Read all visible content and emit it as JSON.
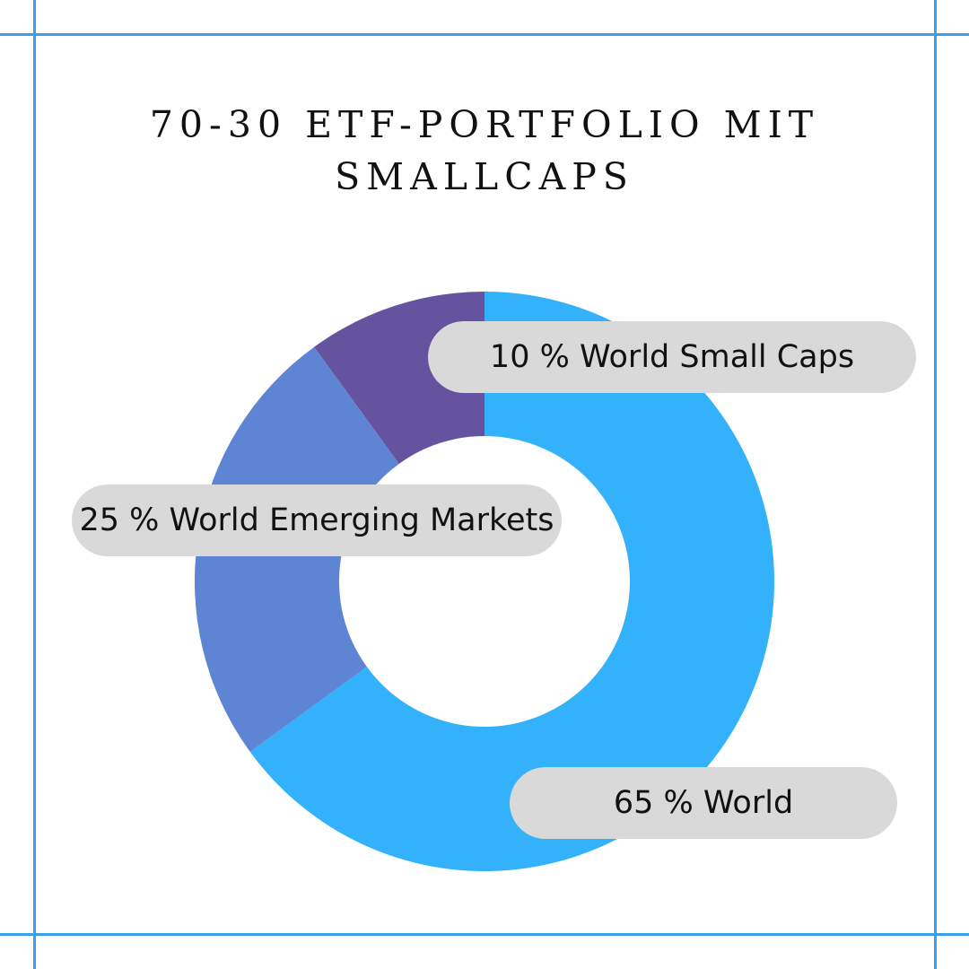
{
  "title_line1": "70-30 ETF-PORTFOLIO MIT",
  "title_line2": "SMALLCAPS",
  "chart_data": {
    "type": "pie",
    "donut": true,
    "start": "top, clockwise",
    "slices": [
      {
        "label": "65 % World",
        "value": 65,
        "color": "#33b1fb"
      },
      {
        "label": "25 % World Emerging Markets",
        "value": 25,
        "color": "#5e84d4"
      },
      {
        "label": "10 % World Small Caps",
        "value": 10,
        "color": "#6653a0"
      }
    ]
  }
}
